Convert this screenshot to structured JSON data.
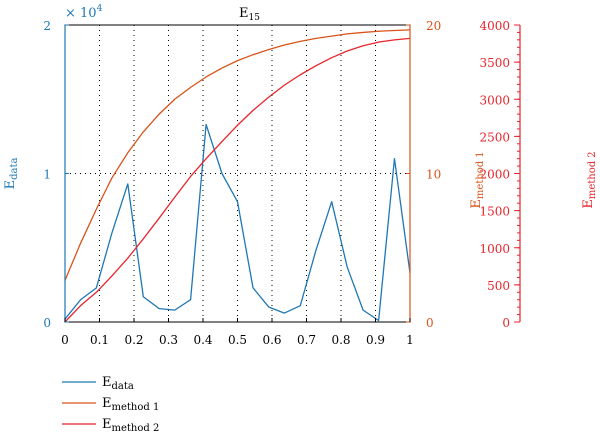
{
  "chart_data": {
    "type": "line",
    "title": "E",
    "title_sub": "15",
    "x": [
      0,
      0.045,
      0.091,
      0.136,
      0.182,
      0.227,
      0.273,
      0.318,
      0.364,
      0.409,
      0.455,
      0.5,
      0.545,
      0.591,
      0.636,
      0.682,
      0.727,
      0.773,
      0.818,
      0.864,
      0.909,
      0.955,
      1.0
    ],
    "xlim": [
      0,
      1
    ],
    "xticks": [
      "0",
      "0.1",
      "0.2",
      "0.3",
      "0.4",
      "0.5",
      "0.6",
      "0.7",
      "0.8",
      "0.9",
      "1"
    ],
    "xtick_values": [
      0,
      0.1,
      0.2,
      0.3,
      0.4,
      0.5,
      0.6,
      0.7,
      0.8,
      0.9,
      1
    ],
    "grid": "dotted",
    "axes": {
      "left": {
        "label": "E",
        "label_sub": "data",
        "color": "#1f77b4",
        "ylim": [
          0,
          2
        ],
        "ticks": [
          "0",
          "1",
          "2"
        ],
        "tick_values": [
          0,
          1,
          2
        ],
        "multiplier": "× 10",
        "multiplier_exp": "4"
      },
      "right1": {
        "label": "E",
        "label_sub": "method 1",
        "color": "#d95319",
        "ylim": [
          0,
          20
        ],
        "ticks": [
          "0",
          "10",
          "20"
        ],
        "tick_values": [
          0,
          10,
          20
        ]
      },
      "right2": {
        "label": "E",
        "label_sub": "method 2",
        "color": "#e8242c",
        "ylim": [
          0,
          4000
        ],
        "ticks": [
          "0",
          "500",
          "1000",
          "1500",
          "2000",
          "2500",
          "3000",
          "3500",
          "4000"
        ],
        "tick_values": [
          0,
          500,
          1000,
          1500,
          2000,
          2500,
          3000,
          3500,
          4000
        ]
      }
    },
    "series": [
      {
        "name": "E",
        "name_sub": "data",
        "axis": "left",
        "color": "#1f77b4",
        "values": [
          0.02,
          0.15,
          0.23,
          0.6,
          0.93,
          0.17,
          0.09,
          0.08,
          0.15,
          1.33,
          1.0,
          0.81,
          0.23,
          0.1,
          0.06,
          0.11,
          0.48,
          0.81,
          0.37,
          0.08,
          0.01,
          1.1,
          0.33
        ]
      },
      {
        "name": "E",
        "name_sub": "method 1",
        "axis": "right1",
        "color": "#d95319",
        "values": [
          2.8,
          5.3,
          7.6,
          9.7,
          11.4,
          12.8,
          14.0,
          15.0,
          15.8,
          16.5,
          17.1,
          17.6,
          18.0,
          18.35,
          18.65,
          18.9,
          19.1,
          19.25,
          19.4,
          19.5,
          19.58,
          19.63,
          19.67
        ]
      },
      {
        "name": "E",
        "name_sub": "method 2",
        "axis": "right2",
        "color": "#e8242c",
        "values": [
          0,
          220,
          400,
          620,
          860,
          1120,
          1400,
          1680,
          1960,
          2200,
          2430,
          2650,
          2850,
          3030,
          3190,
          3330,
          3450,
          3560,
          3650,
          3720,
          3770,
          3800,
          3820
        ]
      }
    ],
    "legend_position": "bottom-left"
  }
}
